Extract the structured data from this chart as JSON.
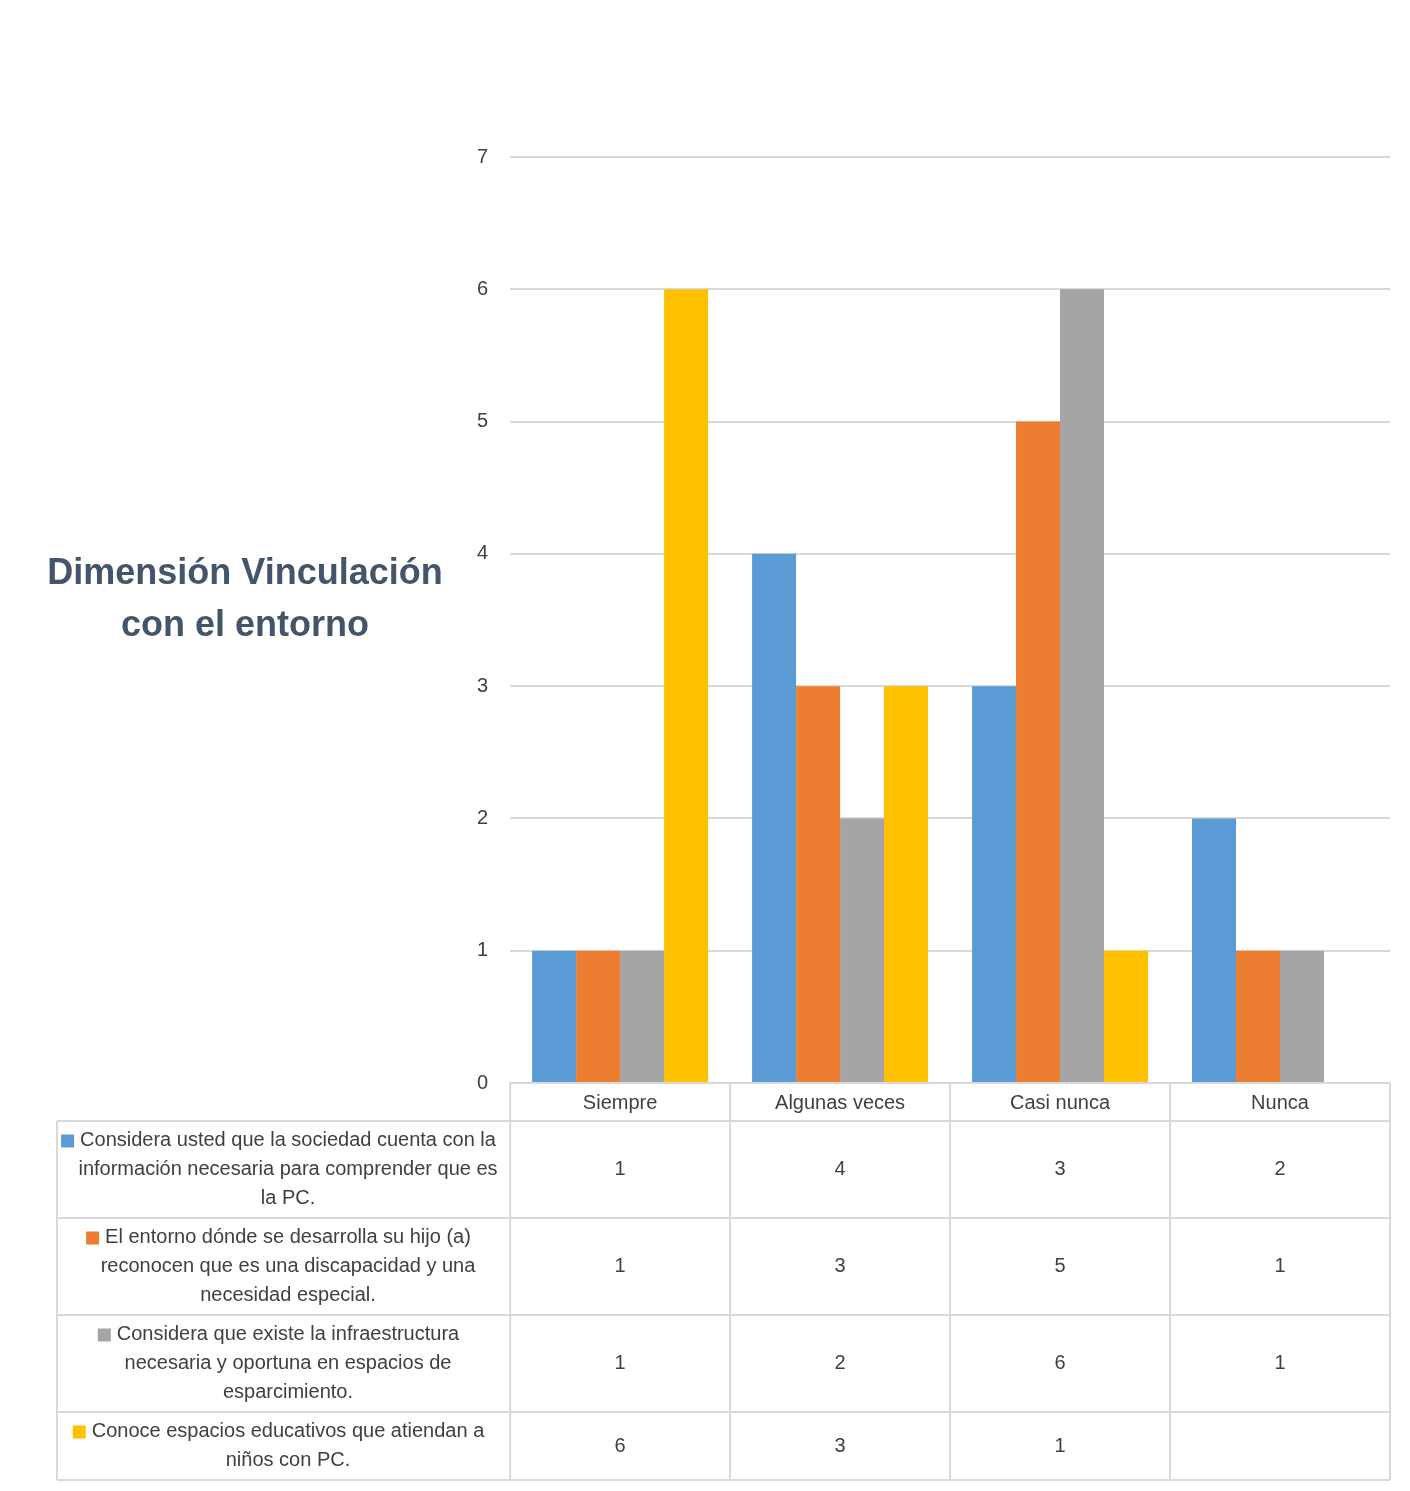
{
  "chart_data": {
    "type": "bar",
    "title": "Dimensión Vinculación con el entorno",
    "categories": [
      "Siempre",
      "Algunas veces",
      "Casi nunca",
      "Nunca"
    ],
    "series": [
      {
        "name": "Considera usted que la sociedad cuenta con la información necesaria para comprender que es la PC.",
        "color": "#5b9bd5",
        "values": [
          1,
          4,
          3,
          2
        ]
      },
      {
        "name": "El entorno dónde se desarrolla su hijo (a) reconocen que es una discapacidad y una necesidad especial.",
        "color": "#ed7d31",
        "values": [
          1,
          3,
          5,
          1
        ]
      },
      {
        "name": "Considera que existe la infraestructura necesaria y oportuna en espacios de esparcimiento.",
        "color": "#a5a5a5",
        "values": [
          1,
          2,
          6,
          1
        ]
      },
      {
        "name": "Conoce espacios educativos que atiendan a niños con PC.",
        "color": "#ffc000",
        "values": [
          6,
          3,
          1,
          null
        ]
      }
    ],
    "ylim": [
      0,
      7
    ],
    "yticks": [
      0,
      1,
      2,
      3,
      4,
      5,
      6,
      7
    ],
    "grid": "y",
    "legend": "bottom",
    "data_labels": true
  }
}
